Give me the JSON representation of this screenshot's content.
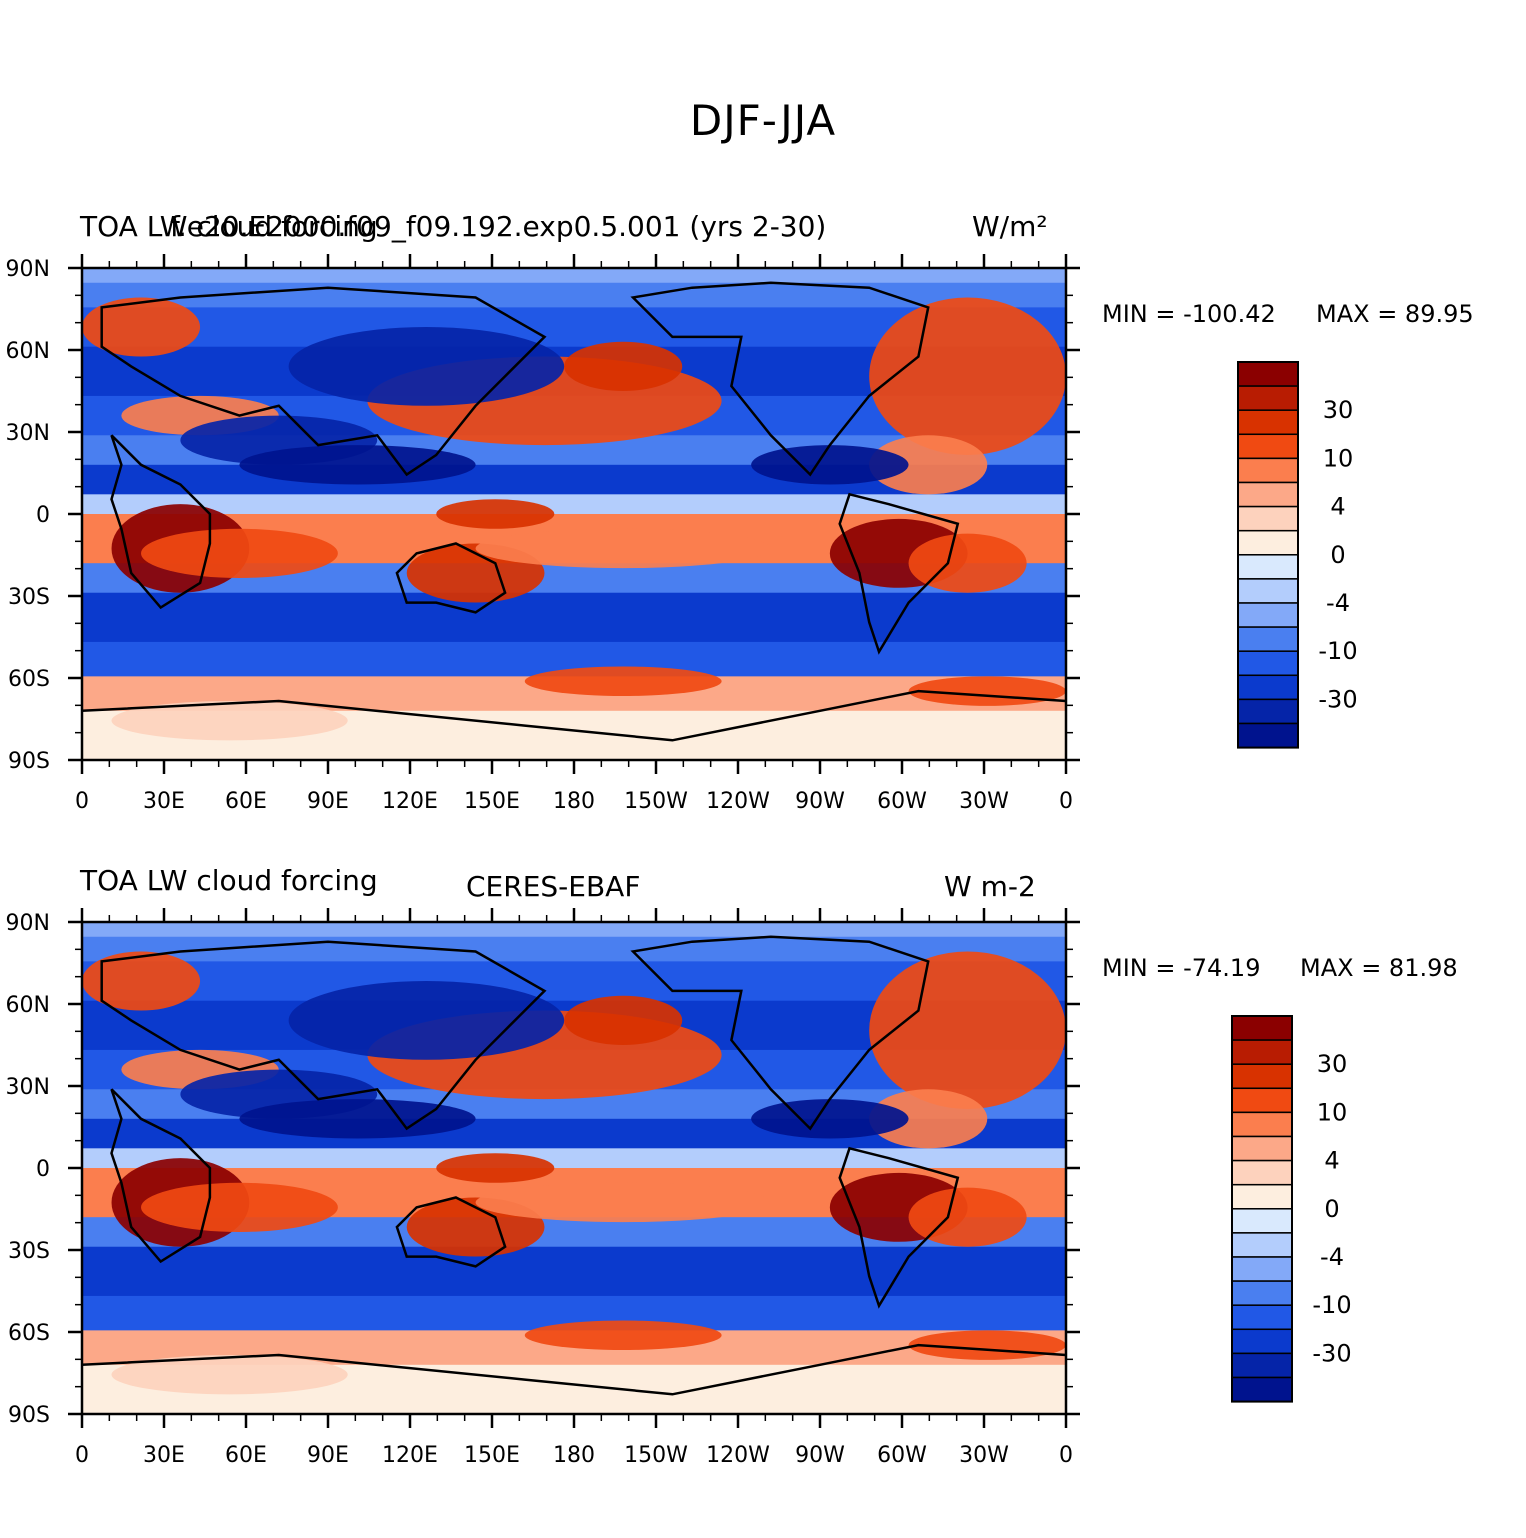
{
  "figure": {
    "title": "DJF-JJA"
  },
  "panels": [
    {
      "left_title": "TOA LW cloud forcing",
      "center_title": "f.e20.E2000.f09_f09.192.exp0.5.001 (yrs 2-30)",
      "right_title": "W/m²",
      "min_label": "MIN = -100.42",
      "max_label": "MAX =  89.95",
      "min": -100.42,
      "max": 89.95
    },
    {
      "left_title": "TOA LW cloud forcing",
      "center_title": "CERES-EBAF",
      "right_title": "W m-2",
      "min_label": "MIN = -74.19",
      "max_label": "MAX =  81.98",
      "min": -74.19,
      "max": 81.98
    }
  ],
  "map": {
    "lat_ticks": [
      "90N",
      "60N",
      "30N",
      "0",
      "30S",
      "60S",
      "90S"
    ],
    "lon_ticks": [
      "0",
      "30E",
      "60E",
      "90E",
      "120E",
      "150E",
      "180",
      "150W",
      "120W",
      "90W",
      "60W",
      "30W",
      "0"
    ]
  },
  "colorbar": {
    "labels": [
      "30",
      "10",
      "4",
      "0",
      "-4",
      "-10",
      "-30"
    ],
    "colors": [
      "#8b0000",
      "#b81c02",
      "#d83200",
      "#f04a12",
      "#fb7e4e",
      "#fca888",
      "#fdd2bd",
      "#fdeedf",
      "#d9e9fd",
      "#b3cdfc",
      "#83a9f8",
      "#4a7ff0",
      "#2158e6",
      "#0b3acd",
      "#0524a8",
      "#00138e"
    ]
  }
}
